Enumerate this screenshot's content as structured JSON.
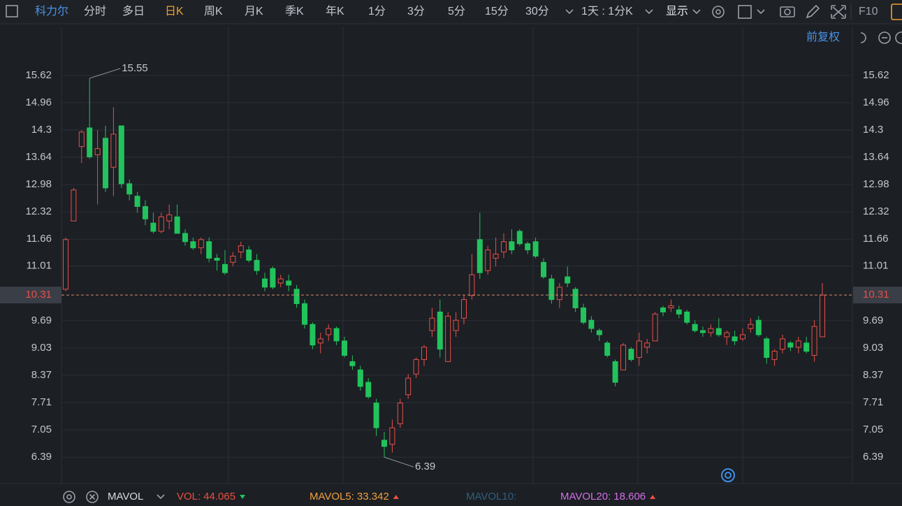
{
  "toolbar": {
    "stock": "科力尔",
    "periods": [
      "分时",
      "多日",
      "日K",
      "周K",
      "月K",
      "季K",
      "年K",
      "1分",
      "3分",
      "5分",
      "15分",
      "30分"
    ],
    "active_index": 2,
    "interval": "1天 : 1分K",
    "display": "显示",
    "f10": "F10"
  },
  "adjust": "前复权",
  "chart_data": {
    "type": "candlestick",
    "ylim": [
      5.75,
      16.8
    ],
    "yticks": [
      6.39,
      7.05,
      7.71,
      8.37,
      9.03,
      9.69,
      11.01,
      11.66,
      12.32,
      12.98,
      13.64,
      14.3,
      14.96,
      15.62
    ],
    "last_price": 10.31,
    "up_color": "#e8504a",
    "down_color": "#22c35c",
    "grid": true,
    "candles": [
      [
        10.45,
        11.7,
        10.4,
        11.65
      ],
      [
        12.1,
        12.9,
        12.1,
        12.85
      ],
      [
        13.9,
        14.3,
        13.5,
        14.25
      ],
      [
        14.35,
        15.55,
        13.6,
        13.65
      ],
      [
        13.7,
        14.3,
        12.5,
        13.85
      ],
      [
        14.1,
        14.4,
        12.8,
        12.9
      ],
      [
        13.4,
        14.85,
        12.7,
        14.2
      ],
      [
        14.4,
        14.4,
        12.9,
        13.0
      ],
      [
        13.0,
        13.1,
        12.6,
        12.75
      ],
      [
        12.7,
        12.8,
        12.3,
        12.45
      ],
      [
        12.45,
        12.6,
        12.0,
        12.15
      ],
      [
        12.05,
        12.3,
        11.8,
        11.85
      ],
      [
        11.85,
        12.3,
        11.8,
        12.2
      ],
      [
        12.1,
        12.5,
        11.9,
        12.25
      ],
      [
        12.2,
        12.5,
        11.8,
        11.8
      ],
      [
        11.8,
        11.9,
        11.5,
        11.6
      ],
      [
        11.6,
        11.7,
        11.4,
        11.45
      ],
      [
        11.45,
        11.7,
        11.3,
        11.65
      ],
      [
        11.6,
        11.7,
        11.1,
        11.2
      ],
      [
        11.2,
        11.3,
        10.9,
        11.15
      ],
      [
        11.05,
        11.4,
        10.8,
        10.85
      ],
      [
        11.1,
        11.35,
        11.0,
        11.25
      ],
      [
        11.35,
        11.6,
        11.2,
        11.5
      ],
      [
        11.4,
        11.5,
        11.1,
        11.15
      ],
      [
        11.15,
        11.3,
        10.8,
        10.9
      ],
      [
        10.7,
        10.85,
        10.4,
        10.5
      ],
      [
        10.95,
        11.0,
        10.45,
        10.5
      ],
      [
        10.6,
        10.8,
        10.5,
        10.7
      ],
      [
        10.65,
        10.8,
        10.4,
        10.55
      ],
      [
        10.45,
        10.55,
        10.0,
        10.1
      ],
      [
        10.1,
        10.2,
        9.5,
        9.6
      ],
      [
        9.6,
        9.65,
        9.0,
        9.1
      ],
      [
        9.15,
        9.4,
        8.9,
        9.25
      ],
      [
        9.35,
        9.6,
        9.2,
        9.5
      ],
      [
        9.5,
        9.55,
        9.1,
        9.2
      ],
      [
        9.2,
        9.3,
        8.8,
        8.85
      ],
      [
        8.7,
        8.85,
        8.5,
        8.6
      ],
      [
        8.5,
        8.6,
        8.0,
        8.1
      ],
      [
        8.2,
        8.3,
        7.8,
        7.85
      ],
      [
        7.7,
        7.8,
        6.9,
        7.1
      ],
      [
        6.8,
        7.0,
        6.39,
        6.65
      ],
      [
        6.7,
        7.3,
        6.5,
        7.1
      ],
      [
        7.2,
        7.8,
        7.1,
        7.7
      ],
      [
        7.9,
        8.4,
        7.8,
        8.3
      ],
      [
        8.4,
        8.8,
        8.3,
        8.75
      ],
      [
        8.75,
        9.1,
        8.6,
        9.05
      ],
      [
        9.45,
        10.0,
        9.3,
        9.75
      ],
      [
        9.9,
        10.2,
        8.8,
        9.0
      ],
      [
        8.7,
        9.9,
        8.7,
        9.8
      ],
      [
        9.45,
        9.9,
        9.3,
        9.7
      ],
      [
        9.75,
        10.3,
        9.6,
        10.2
      ],
      [
        10.3,
        11.3,
        10.2,
        10.8
      ],
      [
        11.65,
        12.3,
        10.7,
        10.85
      ],
      [
        10.9,
        11.5,
        10.8,
        11.4
      ],
      [
        11.2,
        11.7,
        11.0,
        11.3
      ],
      [
        11.35,
        11.8,
        11.2,
        11.6
      ],
      [
        11.6,
        11.9,
        11.3,
        11.4
      ],
      [
        11.85,
        11.9,
        11.5,
        11.55
      ],
      [
        11.55,
        11.6,
        11.3,
        11.4
      ],
      [
        11.6,
        11.7,
        11.2,
        11.25
      ],
      [
        11.1,
        11.2,
        10.7,
        10.75
      ],
      [
        10.7,
        10.8,
        10.1,
        10.2
      ],
      [
        10.2,
        10.6,
        10.0,
        10.5
      ],
      [
        10.75,
        11.0,
        10.5,
        10.6
      ],
      [
        10.45,
        10.5,
        9.9,
        10.0
      ],
      [
        10.0,
        10.1,
        9.6,
        9.65
      ],
      [
        9.7,
        9.8,
        9.4,
        9.5
      ],
      [
        9.45,
        9.5,
        9.2,
        9.35
      ],
      [
        9.15,
        9.2,
        8.8,
        8.85
      ],
      [
        8.7,
        8.75,
        8.1,
        8.2
      ],
      [
        8.5,
        9.15,
        8.5,
        9.1
      ],
      [
        9.0,
        9.05,
        8.7,
        8.75
      ],
      [
        8.8,
        9.4,
        8.6,
        9.2
      ],
      [
        9.05,
        9.25,
        8.9,
        9.15
      ],
      [
        9.2,
        9.9,
        9.2,
        9.85
      ],
      [
        10.0,
        10.05,
        9.8,
        9.9
      ],
      [
        10.0,
        10.2,
        9.9,
        10.05
      ],
      [
        9.95,
        10.05,
        9.75,
        9.85
      ],
      [
        9.9,
        9.95,
        9.6,
        9.65
      ],
      [
        9.6,
        9.7,
        9.4,
        9.45
      ],
      [
        9.45,
        9.55,
        9.3,
        9.4
      ],
      [
        9.4,
        9.6,
        9.3,
        9.5
      ],
      [
        9.5,
        9.75,
        9.3,
        9.35
      ],
      [
        9.3,
        9.45,
        9.1,
        9.4
      ],
      [
        9.3,
        9.45,
        9.1,
        9.2
      ],
      [
        9.25,
        9.5,
        9.2,
        9.35
      ],
      [
        9.5,
        9.75,
        9.4,
        9.6
      ],
      [
        9.7,
        9.8,
        9.3,
        9.35
      ],
      [
        9.25,
        9.3,
        8.65,
        8.8
      ],
      [
        8.75,
        9.0,
        8.6,
        8.95
      ],
      [
        9.0,
        9.35,
        8.9,
        9.25
      ],
      [
        9.15,
        9.2,
        8.95,
        9.05
      ],
      [
        9.05,
        9.3,
        8.9,
        9.2
      ],
      [
        9.15,
        9.3,
        8.9,
        8.95
      ],
      [
        8.85,
        9.7,
        8.7,
        9.55
      ],
      [
        9.3,
        10.6,
        9.3,
        10.31
      ]
    ]
  },
  "indicator_bar": {
    "name": "MAVOL",
    "items": [
      {
        "label": "VOL:",
        "value": 44.065,
        "color": "#e8503f",
        "trend": "down"
      },
      {
        "label": "MAVOL5:",
        "value": 33.342,
        "color": "#f0a040",
        "trend": "up"
      },
      {
        "label": "MAVOL10:",
        "color": "#2f5f7c"
      },
      {
        "label": "MAVOL20:",
        "value": 18.606,
        "color": "#d46ee6",
        "trend": "up"
      }
    ]
  }
}
